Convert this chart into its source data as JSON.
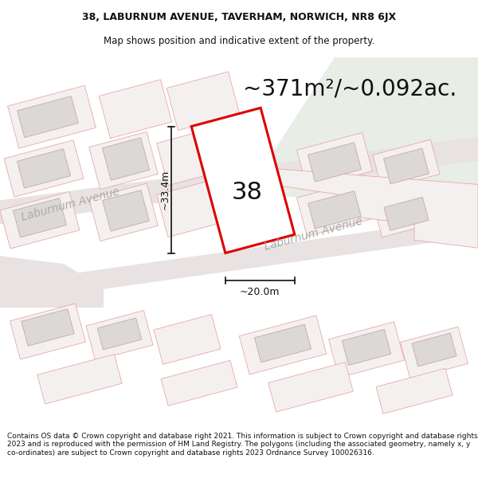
{
  "title_line1": "38, LABURNUM AVENUE, TAVERHAM, NORWICH, NR8 6JX",
  "title_line2": "Map shows position and indicative extent of the property.",
  "area_text": "~371m²/~0.092ac.",
  "house_number": "38",
  "dim_height": "~33.4m",
  "dim_width": "~20.0m",
  "street_name1": "Laburnum Avenue",
  "street_name2": "Laburnum Avenue",
  "footer_text": "Contains OS data © Crown copyright and database right 2021. This information is subject to Crown copyright and database rights 2023 and is reproduced with the permission of HM Land Registry. The polygons (including the associated geometry, namely x, y co-ordinates) are subject to Crown copyright and database rights 2023 Ordnance Survey 100026316.",
  "map_bg": "#f7f2f2",
  "green_color": "#e8ede5",
  "road_color": "#e8e2e2",
  "parcel_fill": "#f5f0f0",
  "parcel_edge": "#e8a8a8",
  "building_fill": "#ddd8d8",
  "building_edge": "#c8b0b0",
  "plot_stroke": "#dd0000",
  "plot_fill": "#ffffff",
  "dim_line_color": "#111111",
  "text_color": "#111111",
  "street_color": "#aaaaaa",
  "title_fontsize": 9,
  "subtitle_fontsize": 8.5,
  "area_fontsize": 20,
  "number_fontsize": 22,
  "dim_fontsize": 9,
  "street_fontsize": 10,
  "footer_fontsize": 6.5
}
